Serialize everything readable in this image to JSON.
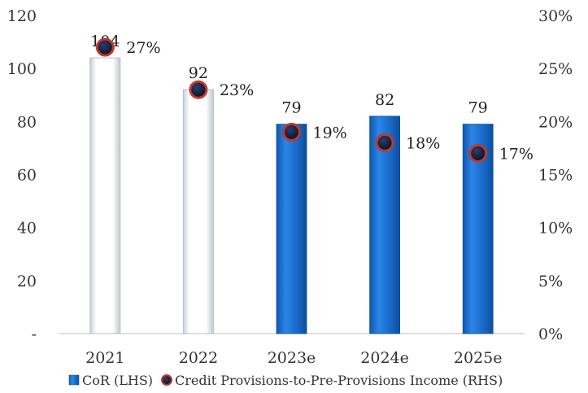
{
  "chart_data": {
    "type": "bar",
    "categories": [
      "2021",
      "2022",
      "2023e",
      "2024e",
      "2025e"
    ],
    "series": [
      {
        "name": "CoR (LHS)",
        "type": "bar",
        "axis": "left",
        "values": [
          104,
          92,
          79,
          82,
          79
        ],
        "data_labels": [
          "104",
          "92",
          "79",
          "82",
          "79"
        ],
        "bar_styles": [
          "white",
          "white",
          "blue",
          "blue",
          "blue"
        ]
      },
      {
        "name": "Credit Provisions-to-Pre-Provisions Income (RHS)",
        "type": "scatter",
        "axis": "right",
        "values": [
          27,
          23,
          19,
          18,
          17
        ],
        "data_labels": [
          "27%",
          "23%",
          "19%",
          "18%",
          "17%"
        ]
      }
    ],
    "left_axis": {
      "min": 0,
      "max": 120,
      "ticks": [
        "-",
        "20",
        "40",
        "60",
        "80",
        "100",
        "120"
      ]
    },
    "right_axis": {
      "min": 0,
      "max": 30,
      "ticks": [
        "0%",
        "5%",
        "10%",
        "15%",
        "20%",
        "25%",
        "30%"
      ]
    },
    "legend_position": "bottom",
    "grid": false,
    "colors": {
      "bar_blue": "#1b6fd1",
      "bar_blue_dark": "#0e4f9e",
      "bar_white": "#ffffff",
      "bar_white_edge": "#b8bec8",
      "marker_fill": "#0b1a3a",
      "marker_ring": "#c0392b"
    }
  }
}
